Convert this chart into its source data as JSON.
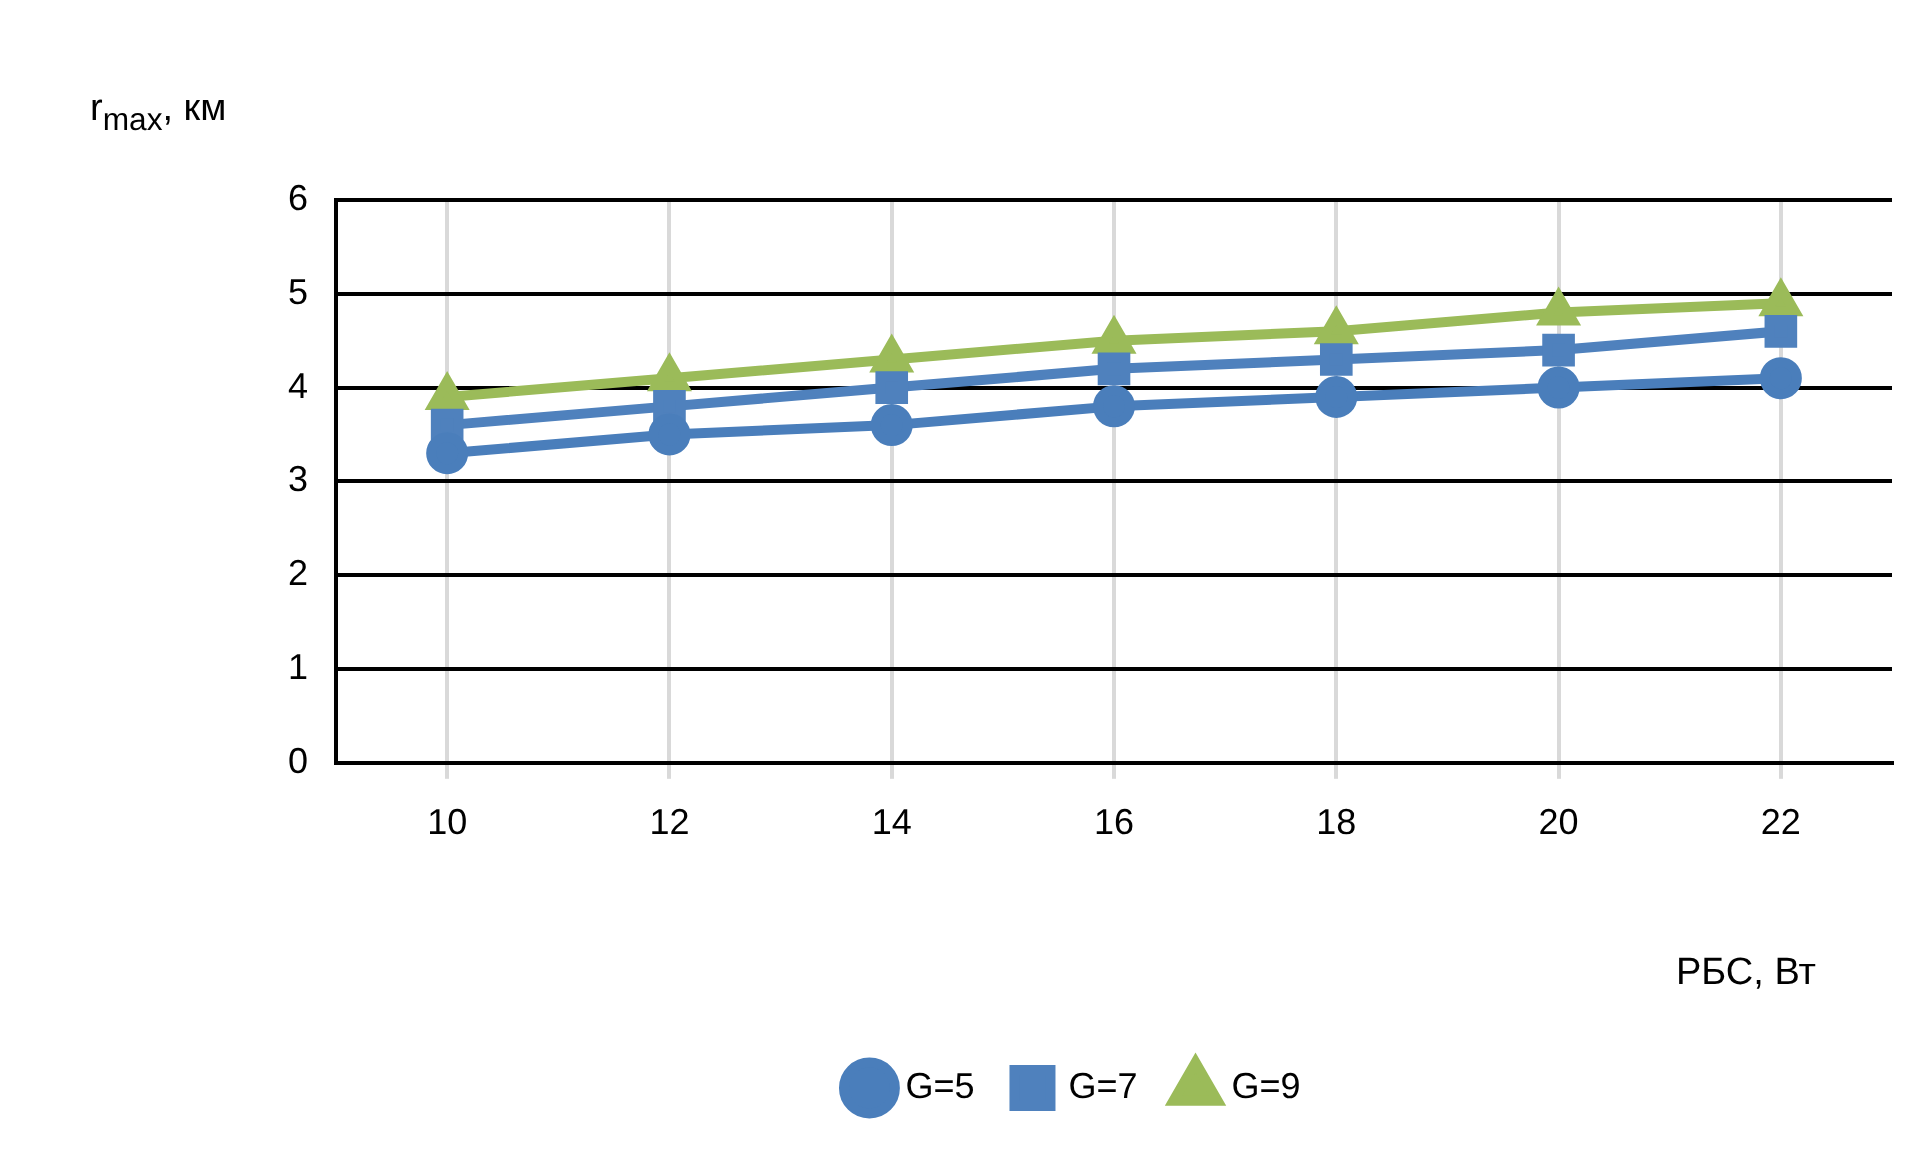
{
  "chart_data": {
    "type": "line",
    "xlabel": "РБС, Вт",
    "ylabel": "r$_{max}$, км",
    "categories": [
      "10",
      "12",
      "14",
      "16",
      "18",
      "20",
      "22"
    ],
    "series": [
      {
        "name": "G=5",
        "color": "#4a7ebb",
        "marker": "circle",
        "values": [
          3.3,
          3.5,
          3.6,
          3.8,
          3.9,
          4.0,
          4.1
        ]
      },
      {
        "name": "G=7",
        "color": "#4f81bd",
        "marker": "square",
        "values": [
          3.6,
          3.8,
          4.0,
          4.2,
          4.3,
          4.4,
          4.6
        ]
      },
      {
        "name": "G=9",
        "color": "#9bbb59",
        "marker": "triangle",
        "values": [
          3.9,
          4.1,
          4.3,
          4.5,
          4.6,
          4.8,
          4.9
        ]
      }
    ],
    "ylim": [
      0,
      6
    ],
    "yticks": [
      0,
      1,
      2,
      3,
      4,
      5,
      6
    ],
    "grid": true,
    "legend": "bottom",
    "line_style": "solid"
  }
}
